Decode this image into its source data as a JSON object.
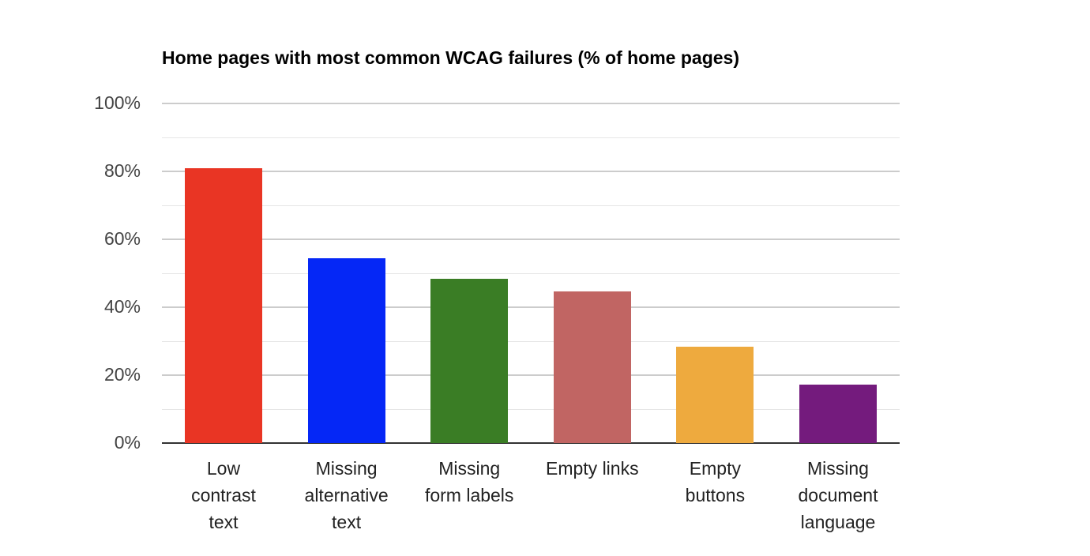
{
  "chart_data": {
    "type": "bar",
    "title": "Home pages with most common WCAG failures (% of home pages)",
    "xlabel": "",
    "ylabel": "",
    "ylim": [
      0,
      100
    ],
    "yticks": [
      "100%",
      "80%",
      "60%",
      "40%",
      "20%",
      "0%"
    ],
    "grid": true,
    "legend": "none",
    "categories": [
      "Low contrast text",
      "Missing alternative text",
      "Missing form labels",
      "Empty links",
      "Empty buttons",
      "Missing document language"
    ],
    "category_lines": [
      [
        "Low",
        "contrast",
        "text"
      ],
      [
        "Missing",
        "alternative",
        "text"
      ],
      [
        "Missing",
        "form labels"
      ],
      [
        "Empty links"
      ],
      [
        "Empty",
        "buttons"
      ],
      [
        "Missing",
        "document",
        "language"
      ]
    ],
    "values": [
      81,
      54.4,
      48.4,
      44.6,
      28.3,
      17.2
    ],
    "colors": [
      "#e93524",
      "#0527f6",
      "#3a7d25",
      "#c16563",
      "#eeaa3e",
      "#741b7d"
    ]
  }
}
